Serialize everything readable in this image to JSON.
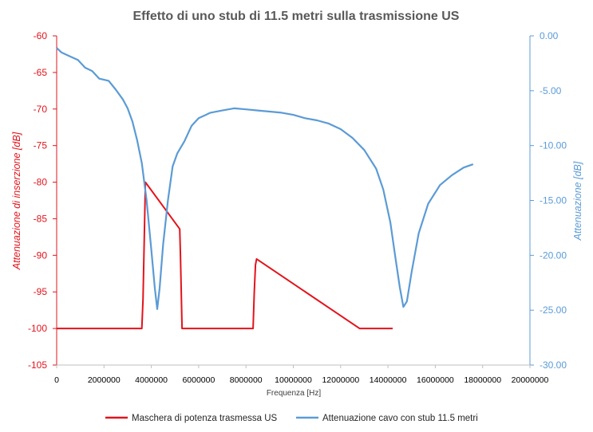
{
  "chart_data": {
    "type": "line",
    "title": "Effetto di uno stub di 11.5 metri sulla trasmissione US",
    "xlabel": "Frequenza [Hz]",
    "ylabel_left": "Attenuazione di inserzione [dB]",
    "ylabel_right": "Attenuazione [dB]",
    "xlim": [
      0,
      20000000
    ],
    "ylim_left": [
      -105,
      -60
    ],
    "ylim_right": [
      -30,
      0
    ],
    "x_ticks": [
      "0",
      "2000000",
      "4000000",
      "6000000",
      "8000000",
      "10000000",
      "12000000",
      "14000000",
      "16000000",
      "18000000",
      "20000000"
    ],
    "y_left_ticks": [
      "-60",
      "-65",
      "-70",
      "-75",
      "-80",
      "-85",
      "-90",
      "-95",
      "-100",
      "-105"
    ],
    "y_right_ticks": [
      "0.00",
      "-5.00",
      "-10.00",
      "-15.00",
      "-20.00",
      "-25.00",
      "-30.00"
    ],
    "legend_position": "bottom",
    "grid": false,
    "colors": {
      "mask": "#e3131b",
      "cable": "#5b9bd5",
      "title": "#595959"
    },
    "series": [
      {
        "name": "Maschera di potenza trasmessa US",
        "axis": "left",
        "points": [
          [
            0,
            -100
          ],
          [
            3600000,
            -100
          ],
          [
            3650000,
            -96
          ],
          [
            3700000,
            -88
          ],
          [
            3750000,
            -80
          ],
          [
            5200000,
            -86.4
          ],
          [
            5230000,
            -90
          ],
          [
            5300000,
            -100
          ],
          [
            8300000,
            -100
          ],
          [
            8350000,
            -95
          ],
          [
            8400000,
            -91.3
          ],
          [
            8450000,
            -90.5
          ],
          [
            12800000,
            -100
          ],
          [
            14200000,
            -100
          ]
        ]
      },
      {
        "name": "Attenuazione cavo con stub 11.5 metri",
        "axis": "right",
        "points": [
          [
            0,
            -1.1
          ],
          [
            200000,
            -1.5
          ],
          [
            600000,
            -1.9
          ],
          [
            900000,
            -2.2
          ],
          [
            1200000,
            -2.9
          ],
          [
            1500000,
            -3.2
          ],
          [
            1800000,
            -3.9
          ],
          [
            2200000,
            -4.1
          ],
          [
            2500000,
            -4.9
          ],
          [
            2800000,
            -5.8
          ],
          [
            3000000,
            -6.6
          ],
          [
            3200000,
            -7.8
          ],
          [
            3400000,
            -9.5
          ],
          [
            3600000,
            -11.6
          ],
          [
            3800000,
            -15
          ],
          [
            4000000,
            -19.5
          ],
          [
            4150000,
            -23
          ],
          [
            4250000,
            -24.9
          ],
          [
            4350000,
            -23
          ],
          [
            4500000,
            -19
          ],
          [
            4700000,
            -15
          ],
          [
            4900000,
            -11.9
          ],
          [
            5100000,
            -10.7
          ],
          [
            5400000,
            -9.6
          ],
          [
            5700000,
            -8.2
          ],
          [
            6000000,
            -7.5
          ],
          [
            6500000,
            -7.0
          ],
          [
            7000000,
            -6.8
          ],
          [
            7500000,
            -6.6
          ],
          [
            8000000,
            -6.7
          ],
          [
            8500000,
            -6.8
          ],
          [
            9000000,
            -6.9
          ],
          [
            9500000,
            -7.0
          ],
          [
            10000000,
            -7.2
          ],
          [
            10500000,
            -7.5
          ],
          [
            11000000,
            -7.7
          ],
          [
            11500000,
            -8.0
          ],
          [
            12000000,
            -8.5
          ],
          [
            12500000,
            -9.3
          ],
          [
            13000000,
            -10.4
          ],
          [
            13500000,
            -12.1
          ],
          [
            13800000,
            -14.0
          ],
          [
            14100000,
            -17.0
          ],
          [
            14300000,
            -20.0
          ],
          [
            14500000,
            -22.9
          ],
          [
            14650000,
            -24.7
          ],
          [
            14800000,
            -24.2
          ],
          [
            15000000,
            -21.5
          ],
          [
            15300000,
            -18.0
          ],
          [
            15700000,
            -15.3
          ],
          [
            16200000,
            -13.6
          ],
          [
            16700000,
            -12.7
          ],
          [
            17200000,
            -12.0
          ],
          [
            17600000,
            -11.7
          ]
        ]
      }
    ]
  }
}
